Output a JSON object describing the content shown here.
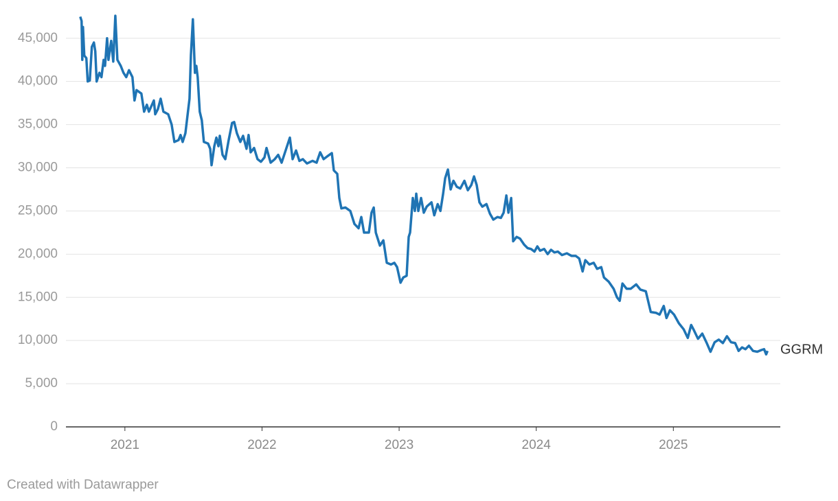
{
  "chart_data": {
    "type": "line",
    "credit": "Created with Datawrapper",
    "x": [
      2020.674,
      2020.684,
      2020.689,
      2020.694,
      2020.704,
      2020.719,
      2020.729,
      2020.744,
      2020.759,
      2020.774,
      2020.784,
      2020.794,
      2020.814,
      2020.829,
      2020.845,
      2020.855,
      2020.87,
      2020.88,
      2020.9,
      2020.915,
      2020.93,
      2020.945,
      2020.97,
      2020.99,
      2021.01,
      2021.03,
      2021.055,
      2021.07,
      2021.085,
      2021.12,
      2021.14,
      2021.16,
      2021.175,
      2021.211,
      2021.221,
      2021.241,
      2021.261,
      2021.281,
      2021.316,
      2021.341,
      2021.361,
      2021.391,
      2021.406,
      2021.421,
      2021.441,
      2021.456,
      2021.471,
      2021.481,
      2021.496,
      2021.511,
      2021.521,
      2021.531,
      2021.546,
      2021.561,
      2021.576,
      2021.607,
      2021.622,
      2021.632,
      2021.652,
      2021.667,
      2021.682,
      2021.692,
      2021.712,
      2021.732,
      2021.757,
      2021.782,
      2021.797,
      2021.817,
      2021.842,
      2021.862,
      2021.887,
      2021.902,
      2021.917,
      2021.942,
      2021.967,
      2021.992,
      2022.018,
      2022.033,
      2022.063,
      2022.093,
      2022.118,
      2022.143,
      2022.203,
      2022.223,
      2022.248,
      2022.273,
      2022.298,
      2022.328,
      2022.368,
      2022.398,
      2022.424,
      2022.449,
      2022.474,
      2022.509,
      2022.524,
      2022.549,
      2022.564,
      2022.579,
      2022.609,
      2022.644,
      2022.674,
      2022.704,
      2022.724,
      2022.744,
      2022.779,
      2022.799,
      2022.815,
      2022.83,
      2022.86,
      2022.885,
      2022.91,
      2022.94,
      2022.965,
      2022.985,
      2023.01,
      2023.03,
      2023.055,
      2023.07,
      2023.08,
      2023.1,
      2023.115,
      2023.125,
      2023.14,
      2023.16,
      2023.18,
      2023.201,
      2023.236,
      2023.256,
      2023.281,
      2023.301,
      2023.321,
      2023.336,
      2023.356,
      2023.376,
      2023.396,
      2023.421,
      2023.446,
      2023.476,
      2023.501,
      2023.526,
      2023.546,
      2023.566,
      2023.586,
      2023.607,
      2023.637,
      2023.662,
      2023.687,
      2023.717,
      2023.742,
      2023.762,
      2023.782,
      2023.797,
      2023.817,
      2023.832,
      2023.857,
      2023.882,
      2023.912,
      2023.937,
      2023.962,
      2023.987,
      2024.008,
      2024.028,
      2024.058,
      2024.083,
      2024.108,
      2024.133,
      2024.158,
      2024.188,
      2024.223,
      2024.258,
      2024.288,
      2024.313,
      2024.338,
      2024.358,
      2024.388,
      2024.419,
      2024.444,
      2024.474,
      2024.494,
      2024.529,
      2024.564,
      2024.589,
      2024.609,
      2024.629,
      2024.659,
      2024.689,
      2024.729,
      2024.759,
      2024.799,
      2024.835,
      2024.875,
      2024.9,
      2024.93,
      2024.95,
      2024.975,
      2025.005,
      2025.04,
      2025.075,
      2025.105,
      2025.13,
      2025.15,
      2025.18,
      2025.211,
      2025.241,
      2025.271,
      2025.301,
      2025.331,
      2025.361,
      2025.391,
      2025.421,
      2025.451,
      2025.476,
      2025.501,
      2025.526,
      2025.551,
      2025.581,
      2025.612,
      2025.642,
      2025.662,
      2025.677,
      2025.687
    ],
    "series": [
      {
        "name": "GGRM",
        "color": "#1f74b4",
        "values": [
          47500,
          47000,
          42500,
          46300,
          43000,
          42700,
          40000,
          40100,
          44000,
          44500,
          43500,
          40000,
          41000,
          40500,
          42500,
          41800,
          45000,
          42500,
          44700,
          42300,
          47600,
          42500,
          41800,
          41000,
          40500,
          41300,
          40500,
          37800,
          39000,
          38600,
          36500,
          37300,
          36500,
          37800,
          36200,
          36800,
          38000,
          36500,
          36200,
          35000,
          33000,
          33200,
          33800,
          33000,
          34000,
          36000,
          38000,
          43000,
          47200,
          41000,
          41800,
          40500,
          36500,
          35500,
          33000,
          32800,
          32200,
          30300,
          32500,
          33500,
          32500,
          33700,
          31500,
          31000,
          33200,
          35200,
          35300,
          34000,
          33000,
          33700,
          32200,
          33800,
          31800,
          32300,
          31000,
          30700,
          31200,
          32300,
          30600,
          31000,
          31500,
          30600,
          33500,
          31000,
          32000,
          30800,
          31000,
          30500,
          30800,
          30600,
          31800,
          31000,
          31300,
          31700,
          29700,
          29300,
          26500,
          25300,
          25400,
          25000,
          23500,
          23000,
          24300,
          22500,
          22500,
          24800,
          25400,
          22500,
          21000,
          21600,
          19000,
          18800,
          19000,
          18500,
          16700,
          17300,
          17500,
          22000,
          22500,
          26500,
          25000,
          27000,
          25000,
          26500,
          24800,
          25500,
          26000,
          24500,
          25800,
          25000,
          27000,
          28800,
          29800,
          27500,
          28500,
          27800,
          27600,
          28500,
          27400,
          28000,
          29000,
          28000,
          26000,
          25500,
          25800,
          24700,
          24000,
          24300,
          24200,
          24800,
          26800,
          24800,
          26500,
          21500,
          22000,
          21800,
          21100,
          20700,
          20600,
          20300,
          20900,
          20400,
          20600,
          20000,
          20500,
          20200,
          20300,
          19900,
          20100,
          19800,
          19800,
          19500,
          18000,
          19300,
          18800,
          19000,
          18300,
          18500,
          17300,
          16800,
          16000,
          15000,
          14600,
          16600,
          16000,
          16000,
          16500,
          15900,
          15700,
          13300,
          13200,
          13000,
          14000,
          12600,
          13500,
          13000,
          12000,
          11300,
          10300,
          11800,
          11200,
          10200,
          10800,
          9800,
          8700,
          9800,
          10100,
          9700,
          10500,
          9800,
          9700,
          8800,
          9200,
          9000,
          9400,
          8800,
          8700,
          8900,
          9000,
          8400,
          8800
        ]
      }
    ],
    "xlim": [
      2020.57,
      2025.78
    ],
    "xticks": [
      2021,
      2022,
      2023,
      2024,
      2025
    ],
    "ylim": [
      0,
      48000
    ],
    "yticks": [
      0,
      {
        "value": 5000,
        "label": "5,000"
      },
      {
        "value": 10000,
        "label": "10,000"
      },
      {
        "value": 15000,
        "label": "15,000"
      },
      {
        "value": 20000,
        "label": "20,000"
      },
      {
        "value": 25000,
        "label": "25,000"
      },
      {
        "value": 30000,
        "label": "30,000"
      },
      {
        "value": 35000,
        "label": "35,000"
      },
      {
        "value": 40000,
        "label": "40,000"
      },
      {
        "value": 45000,
        "label": "45,000"
      }
    ],
    "grid": true
  }
}
